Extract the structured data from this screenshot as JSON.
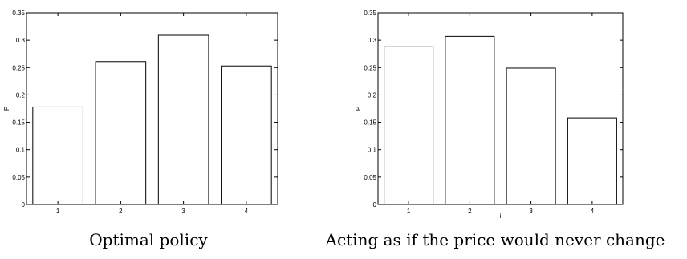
{
  "chart_data": [
    {
      "type": "bar",
      "categories": [
        "1",
        "2",
        "3",
        "4"
      ],
      "values": [
        0.178,
        0.261,
        0.309,
        0.253
      ],
      "xlabel": "i",
      "ylabel": "P",
      "ylim": [
        0,
        0.35
      ],
      "yticks": [
        "0",
        "0.05",
        "0.1",
        "0.15",
        "0.2",
        "0.25",
        "0.3",
        "0.35"
      ],
      "grid": false,
      "caption": "Optimal policy"
    },
    {
      "type": "bar",
      "categories": [
        "1",
        "2",
        "3",
        "4"
      ],
      "values": [
        0.288,
        0.307,
        0.249,
        0.158
      ],
      "xlabel": "i",
      "ylabel": "P",
      "ylim": [
        0,
        0.35
      ],
      "yticks": [
        "0",
        "0.05",
        "0.1",
        "0.15",
        "0.2",
        "0.25",
        "0.3",
        "0.35"
      ],
      "grid": false,
      "caption": "Acting as if the price would never change"
    }
  ]
}
